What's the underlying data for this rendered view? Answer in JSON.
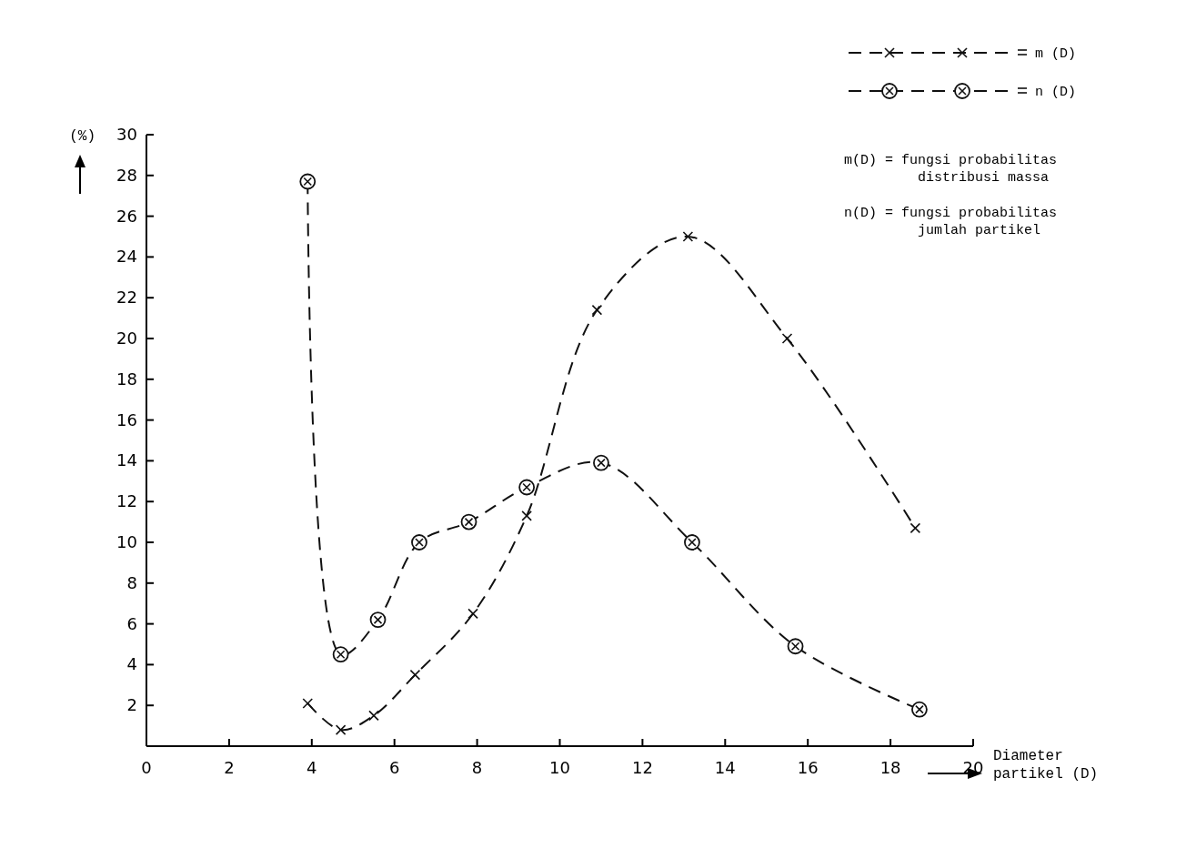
{
  "chart_data": {
    "type": "line",
    "xlabel": "Diameter\npartikel (D)",
    "ylabel": "(%)",
    "xlim": [
      0,
      20
    ],
    "xticks": [
      0,
      2,
      4,
      6,
      8,
      10,
      12,
      14,
      16,
      18,
      20
    ],
    "ylim": [
      0,
      30
    ],
    "yticks": [
      2,
      4,
      6,
      8,
      10,
      12,
      14,
      16,
      18,
      20,
      22,
      24,
      26,
      28,
      30
    ],
    "grid": false,
    "legend": "top right",
    "line_style": "dashed",
    "series": [
      {
        "name": "m (D)",
        "color": "#111111",
        "marker": "cross",
        "x": [
          3.9,
          4.7,
          5.5,
          6.5,
          7.9,
          9.2,
          10.9,
          13.1,
          15.5,
          18.6
        ],
        "values": [
          2.1,
          0.8,
          1.5,
          3.5,
          6.5,
          11.3,
          21.4,
          25.0,
          20.0,
          10.7
        ]
      },
      {
        "name": "n (D)",
        "color": "#111111",
        "marker": "circle",
        "x": [
          3.9,
          4.7,
          5.6,
          6.6,
          7.8,
          9.2,
          11.0,
          13.2,
          15.7,
          18.7
        ],
        "values": [
          27.7,
          4.5,
          6.2,
          10.0,
          11.0,
          12.7,
          13.9,
          10.0,
          4.9,
          1.8
        ]
      }
    ],
    "annotations": [
      "m(D) = fungsi probabilitas\ndistribusi massa",
      "n(D) = fungsi probabilitas\njumlah partikel"
    ]
  }
}
